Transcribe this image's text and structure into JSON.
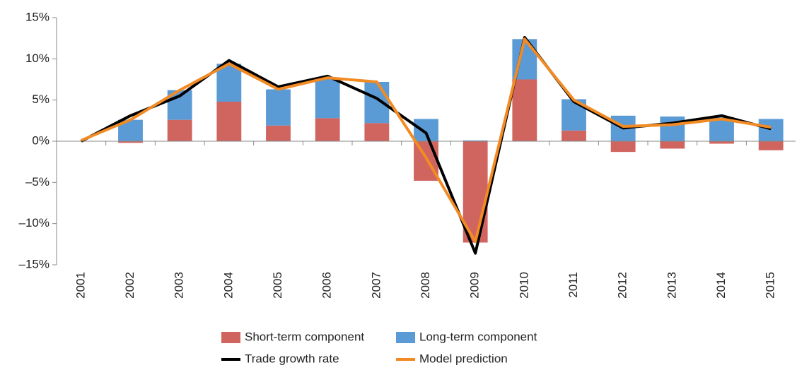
{
  "chart_data": {
    "type": "bar",
    "stacked": true,
    "categories": [
      "2001",
      "2002",
      "2003",
      "2004",
      "2005",
      "2006",
      "2007",
      "2008",
      "2009",
      "2010",
      "2011",
      "2012",
      "2013",
      "2014",
      "2015"
    ],
    "series": [
      {
        "name": "Short-term component",
        "type": "bar",
        "color": "#d0645f",
        "values": [
          0,
          -0.2,
          2.6,
          4.8,
          1.9,
          2.8,
          2.2,
          -4.8,
          -12.3,
          7.5,
          1.3,
          -1.3,
          -0.9,
          -0.3,
          -1.1
        ]
      },
      {
        "name": "Long-term component",
        "type": "bar",
        "color": "#5b9bd5",
        "values": [
          0,
          2.6,
          3.6,
          4.6,
          4.4,
          4.9,
          5.0,
          2.7,
          0.1,
          4.9,
          3.8,
          3.1,
          3.0,
          2.9,
          2.7
        ]
      },
      {
        "name": "Trade growth rate",
        "type": "line",
        "color": "#000000",
        "values": [
          0,
          3.1,
          5.5,
          9.8,
          6.6,
          7.9,
          5.2,
          1.0,
          -13.6,
          12.6,
          4.8,
          1.6,
          2.2,
          3.1,
          1.5
        ]
      },
      {
        "name": "Model prediction",
        "type": "line",
        "color": "#f28b24",
        "values": [
          0.1,
          2.6,
          6.2,
          9.4,
          6.3,
          7.7,
          7.2,
          -2.0,
          -12.2,
          12.4,
          5.0,
          1.8,
          2.0,
          2.7,
          1.7
        ]
      }
    ],
    "ylim": [
      -15,
      15
    ],
    "yticks": [
      {
        "value": -15,
        "label": "–15%"
      },
      {
        "value": -10,
        "label": "–10%"
      },
      {
        "value": -5,
        "label": "–5%"
      },
      {
        "value": 0,
        "label": "0%"
      },
      {
        "value": 5,
        "label": "5%"
      },
      {
        "value": 10,
        "label": "10%"
      },
      {
        "value": 15,
        "label": "15%"
      }
    ],
    "grid": false,
    "legend": "bottom"
  }
}
